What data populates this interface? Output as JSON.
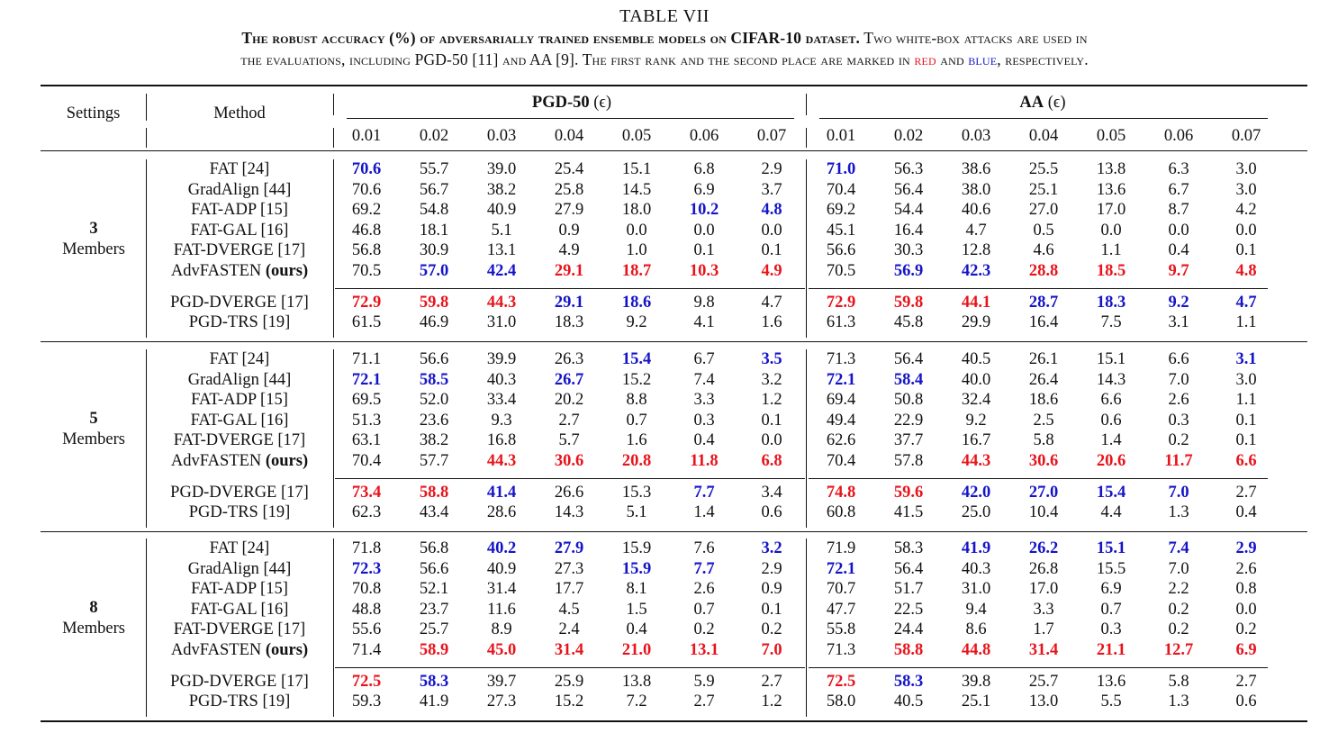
{
  "caption": {
    "table_label": "TABLE VII",
    "line1_bold": "The robust accuracy (%) of adversarially trained ensemble models on CIFAR-10 dataset.",
    "line1_rest": " Two white-box attacks are used in",
    "line2_pre": "the evaluations, including PGD-50 [11] and AA [9]. The first rank and the second place are marked in ",
    "red_word": "red",
    "line2_mid": " and ",
    "blue_word": "blue",
    "line2_post": ", respectively."
  },
  "headers": {
    "settings": "Settings",
    "method": "Method",
    "pgd_group": "PGD-50",
    "aa_group": "AA",
    "epsilon": "(ϵ)",
    "eps_values": [
      "0.01",
      "0.02",
      "0.03",
      "0.04",
      "0.05",
      "0.06",
      "0.07"
    ]
  },
  "colors": {
    "red": "#e8131b",
    "blue": "#1414c8"
  },
  "groups": [
    {
      "number": "3",
      "label": "Members",
      "rows": [
        {
          "method": "FAT [24]",
          "pgd": [
            "70.6",
            "55.7",
            "39.0",
            "25.4",
            "15.1",
            "6.8",
            "2.9"
          ],
          "pgd_mark": [
            "b",
            "",
            "",
            "",
            "",
            "",
            ""
          ],
          "aa": [
            "71.0",
            "56.3",
            "38.6",
            "25.5",
            "13.8",
            "6.3",
            "3.0"
          ],
          "aa_mark": [
            "b",
            "",
            "",
            "",
            "",
            "",
            ""
          ]
        },
        {
          "method": "GradAlign [44]",
          "pgd": [
            "70.6",
            "56.7",
            "38.2",
            "25.8",
            "14.5",
            "6.9",
            "3.7"
          ],
          "pgd_mark": [
            "",
            "",
            "",
            "",
            "",
            "",
            ""
          ],
          "aa": [
            "70.4",
            "56.4",
            "38.0",
            "25.1",
            "13.6",
            "6.7",
            "3.0"
          ],
          "aa_mark": [
            "",
            "",
            "",
            "",
            "",
            "",
            ""
          ]
        },
        {
          "method": "FAT-ADP [15]",
          "pgd": [
            "69.2",
            "54.8",
            "40.9",
            "27.9",
            "18.0",
            "10.2",
            "4.8"
          ],
          "pgd_mark": [
            "",
            "",
            "",
            "",
            "",
            "b",
            "b"
          ],
          "aa": [
            "69.2",
            "54.4",
            "40.6",
            "27.0",
            "17.0",
            "8.7",
            "4.2"
          ],
          "aa_mark": [
            "",
            "",
            "",
            "",
            "",
            "",
            ""
          ]
        },
        {
          "method": "FAT-GAL [16]",
          "pgd": [
            "46.8",
            "18.1",
            "5.1",
            "0.9",
            "0.0",
            "0.0",
            "0.0"
          ],
          "pgd_mark": [
            "",
            "",
            "",
            "",
            "",
            "",
            ""
          ],
          "aa": [
            "45.1",
            "16.4",
            "4.7",
            "0.5",
            "0.0",
            "0.0",
            "0.0"
          ],
          "aa_mark": [
            "",
            "",
            "",
            "",
            "",
            "",
            ""
          ]
        },
        {
          "method": "FAT-DVERGE [17]",
          "pgd": [
            "56.8",
            "30.9",
            "13.1",
            "4.9",
            "1.0",
            "0.1",
            "0.1"
          ],
          "pgd_mark": [
            "",
            "",
            "",
            "",
            "",
            "",
            ""
          ],
          "aa": [
            "56.6",
            "30.3",
            "12.8",
            "4.6",
            "1.1",
            "0.4",
            "0.1"
          ],
          "aa_mark": [
            "",
            "",
            "",
            "",
            "",
            "",
            ""
          ]
        },
        {
          "method": "AdvFASTEN",
          "ours": "(ours)",
          "pgd": [
            "70.5",
            "57.0",
            "42.4",
            "29.1",
            "18.7",
            "10.3",
            "4.9"
          ],
          "pgd_mark": [
            "",
            "b",
            "b",
            "r",
            "r",
            "r",
            "r"
          ],
          "aa": [
            "70.5",
            "56.9",
            "42.3",
            "28.8",
            "18.5",
            "9.7",
            "4.8"
          ],
          "aa_mark": [
            "",
            "b",
            "b",
            "r",
            "r",
            "r",
            "r"
          ]
        }
      ],
      "baselines": [
        {
          "method": "PGD-DVERGE [17]",
          "pgd": [
            "72.9",
            "59.8",
            "44.3",
            "29.1",
            "18.6",
            "9.8",
            "4.7"
          ],
          "pgd_mark": [
            "r",
            "r",
            "r",
            "b",
            "b",
            "",
            ""
          ],
          "aa": [
            "72.9",
            "59.8",
            "44.1",
            "28.7",
            "18.3",
            "9.2",
            "4.7"
          ],
          "aa_mark": [
            "r",
            "r",
            "r",
            "b",
            "b",
            "b",
            "b"
          ]
        },
        {
          "method": "PGD-TRS [19]",
          "pgd": [
            "61.5",
            "46.9",
            "31.0",
            "18.3",
            "9.2",
            "4.1",
            "1.6"
          ],
          "pgd_mark": [
            "",
            "",
            "",
            "",
            "",
            "",
            ""
          ],
          "aa": [
            "61.3",
            "45.8",
            "29.9",
            "16.4",
            "7.5",
            "3.1",
            "1.1"
          ],
          "aa_mark": [
            "",
            "",
            "",
            "",
            "",
            "",
            ""
          ]
        }
      ]
    },
    {
      "number": "5",
      "label": "Members",
      "rows": [
        {
          "method": "FAT [24]",
          "pgd": [
            "71.1",
            "56.6",
            "39.9",
            "26.3",
            "15.4",
            "6.7",
            "3.5"
          ],
          "pgd_mark": [
            "",
            "",
            "",
            "",
            "b",
            "",
            "b"
          ],
          "aa": [
            "71.3",
            "56.4",
            "40.5",
            "26.1",
            "15.1",
            "6.6",
            "3.1"
          ],
          "aa_mark": [
            "",
            "",
            "",
            "",
            "",
            "",
            "b"
          ]
        },
        {
          "method": "GradAlign [44]",
          "pgd": [
            "72.1",
            "58.5",
            "40.3",
            "26.7",
            "15.2",
            "7.4",
            "3.2"
          ],
          "pgd_mark": [
            "b",
            "b",
            "",
            "b",
            "",
            "",
            ""
          ],
          "aa": [
            "72.1",
            "58.4",
            "40.0",
            "26.4",
            "14.3",
            "7.0",
            "3.0"
          ],
          "aa_mark": [
            "b",
            "b",
            "",
            "",
            "",
            "",
            ""
          ]
        },
        {
          "method": "FAT-ADP [15]",
          "pgd": [
            "69.5",
            "52.0",
            "33.4",
            "20.2",
            "8.8",
            "3.3",
            "1.2"
          ],
          "pgd_mark": [
            "",
            "",
            "",
            "",
            "",
            "",
            ""
          ],
          "aa": [
            "69.4",
            "50.8",
            "32.4",
            "18.6",
            "6.6",
            "2.6",
            "1.1"
          ],
          "aa_mark": [
            "",
            "",
            "",
            "",
            "",
            "",
            ""
          ]
        },
        {
          "method": "FAT-GAL [16]",
          "pgd": [
            "51.3",
            "23.6",
            "9.3",
            "2.7",
            "0.7",
            "0.3",
            "0.1"
          ],
          "pgd_mark": [
            "",
            "",
            "",
            "",
            "",
            "",
            ""
          ],
          "aa": [
            "49.4",
            "22.9",
            "9.2",
            "2.5",
            "0.6",
            "0.3",
            "0.1"
          ],
          "aa_mark": [
            "",
            "",
            "",
            "",
            "",
            "",
            ""
          ]
        },
        {
          "method": "FAT-DVERGE [17]",
          "pgd": [
            "63.1",
            "38.2",
            "16.8",
            "5.7",
            "1.6",
            "0.4",
            "0.0"
          ],
          "pgd_mark": [
            "",
            "",
            "",
            "",
            "",
            "",
            ""
          ],
          "aa": [
            "62.6",
            "37.7",
            "16.7",
            "5.8",
            "1.4",
            "0.2",
            "0.1"
          ],
          "aa_mark": [
            "",
            "",
            "",
            "",
            "",
            "",
            ""
          ]
        },
        {
          "method": "AdvFASTEN",
          "ours": "(ours)",
          "pgd": [
            "70.4",
            "57.7",
            "44.3",
            "30.6",
            "20.8",
            "11.8",
            "6.8"
          ],
          "pgd_mark": [
            "",
            "",
            "r",
            "r",
            "r",
            "r",
            "r"
          ],
          "aa": [
            "70.4",
            "57.8",
            "44.3",
            "30.6",
            "20.6",
            "11.7",
            "6.6"
          ],
          "aa_mark": [
            "",
            "",
            "r",
            "r",
            "r",
            "r",
            "r"
          ]
        }
      ],
      "baselines": [
        {
          "method": "PGD-DVERGE [17]",
          "pgd": [
            "73.4",
            "58.8",
            "41.4",
            "26.6",
            "15.3",
            "7.7",
            "3.4"
          ],
          "pgd_mark": [
            "r",
            "r",
            "b",
            "",
            "",
            "b",
            ""
          ],
          "aa": [
            "74.8",
            "59.6",
            "42.0",
            "27.0",
            "15.4",
            "7.0",
            "2.7"
          ],
          "aa_mark": [
            "r",
            "r",
            "b",
            "b",
            "b",
            "b",
            ""
          ]
        },
        {
          "method": "PGD-TRS [19]",
          "pgd": [
            "62.3",
            "43.4",
            "28.6",
            "14.3",
            "5.1",
            "1.4",
            "0.6"
          ],
          "pgd_mark": [
            "",
            "",
            "",
            "",
            "",
            "",
            ""
          ],
          "aa": [
            "60.8",
            "41.5",
            "25.0",
            "10.4",
            "4.4",
            "1.3",
            "0.4"
          ],
          "aa_mark": [
            "",
            "",
            "",
            "",
            "",
            "",
            ""
          ]
        }
      ]
    },
    {
      "number": "8",
      "label": "Members",
      "rows": [
        {
          "method": "FAT [24]",
          "pgd": [
            "71.8",
            "56.8",
            "40.2",
            "27.9",
            "15.9",
            "7.6",
            "3.2"
          ],
          "pgd_mark": [
            "",
            "",
            "b",
            "b",
            "",
            "",
            "b"
          ],
          "aa": [
            "71.9",
            "58.3",
            "41.9",
            "26.2",
            "15.1",
            "7.4",
            "2.9"
          ],
          "aa_mark": [
            "",
            "",
            "b",
            "b",
            "b",
            "b",
            "b"
          ]
        },
        {
          "method": "GradAlign [44]",
          "pgd": [
            "72.3",
            "56.6",
            "40.9",
            "27.3",
            "15.9",
            "7.7",
            "2.9"
          ],
          "pgd_mark": [
            "b",
            "",
            "",
            "",
            "b",
            "b",
            ""
          ],
          "aa": [
            "72.1",
            "56.4",
            "40.3",
            "26.8",
            "15.5",
            "7.0",
            "2.6"
          ],
          "aa_mark": [
            "b",
            "",
            "",
            "",
            "",
            "",
            ""
          ]
        },
        {
          "method": "FAT-ADP [15]",
          "pgd": [
            "70.8",
            "52.1",
            "31.4",
            "17.7",
            "8.1",
            "2.6",
            "0.9"
          ],
          "pgd_mark": [
            "",
            "",
            "",
            "",
            "",
            "",
            ""
          ],
          "aa": [
            "70.7",
            "51.7",
            "31.0",
            "17.0",
            "6.9",
            "2.2",
            "0.8"
          ],
          "aa_mark": [
            "",
            "",
            "",
            "",
            "",
            "",
            ""
          ]
        },
        {
          "method": "FAT-GAL [16]",
          "pgd": [
            "48.8",
            "23.7",
            "11.6",
            "4.5",
            "1.5",
            "0.7",
            "0.1"
          ],
          "pgd_mark": [
            "",
            "",
            "",
            "",
            "",
            "",
            ""
          ],
          "aa": [
            "47.7",
            "22.5",
            "9.4",
            "3.3",
            "0.7",
            "0.2",
            "0.0"
          ],
          "aa_mark": [
            "",
            "",
            "",
            "",
            "",
            "",
            ""
          ]
        },
        {
          "method": "FAT-DVERGE [17]",
          "pgd": [
            "55.6",
            "25.7",
            "8.9",
            "2.4",
            "0.4",
            "0.2",
            "0.2"
          ],
          "pgd_mark": [
            "",
            "",
            "",
            "",
            "",
            "",
            ""
          ],
          "aa": [
            "55.8",
            "24.4",
            "8.6",
            "1.7",
            "0.3",
            "0.2",
            "0.2"
          ],
          "aa_mark": [
            "",
            "",
            "",
            "",
            "",
            "",
            ""
          ]
        },
        {
          "method": "AdvFASTEN",
          "ours": "(ours)",
          "pgd": [
            "71.4",
            "58.9",
            "45.0",
            "31.4",
            "21.0",
            "13.1",
            "7.0"
          ],
          "pgd_mark": [
            "",
            "r",
            "r",
            "r",
            "r",
            "r",
            "r"
          ],
          "aa": [
            "71.3",
            "58.8",
            "44.8",
            "31.4",
            "21.1",
            "12.7",
            "6.9"
          ],
          "aa_mark": [
            "",
            "r",
            "r",
            "r",
            "r",
            "r",
            "r"
          ]
        }
      ],
      "baselines": [
        {
          "method": "PGD-DVERGE [17]",
          "pgd": [
            "72.5",
            "58.3",
            "39.7",
            "25.9",
            "13.8",
            "5.9",
            "2.7"
          ],
          "pgd_mark": [
            "r",
            "b",
            "",
            "",
            "",
            "",
            ""
          ],
          "aa": [
            "72.5",
            "58.3",
            "39.8",
            "25.7",
            "13.6",
            "5.8",
            "2.7"
          ],
          "aa_mark": [
            "r",
            "b",
            "",
            "",
            "",
            "",
            ""
          ]
        },
        {
          "method": "PGD-TRS [19]",
          "pgd": [
            "59.3",
            "41.9",
            "27.3",
            "15.2",
            "7.2",
            "2.7",
            "1.2"
          ],
          "pgd_mark": [
            "",
            "",
            "",
            "",
            "",
            "",
            ""
          ],
          "aa": [
            "58.0",
            "40.5",
            "25.1",
            "13.0",
            "5.5",
            "1.3",
            "0.6"
          ],
          "aa_mark": [
            "",
            "",
            "",
            "",
            "",
            "",
            ""
          ]
        }
      ]
    }
  ]
}
